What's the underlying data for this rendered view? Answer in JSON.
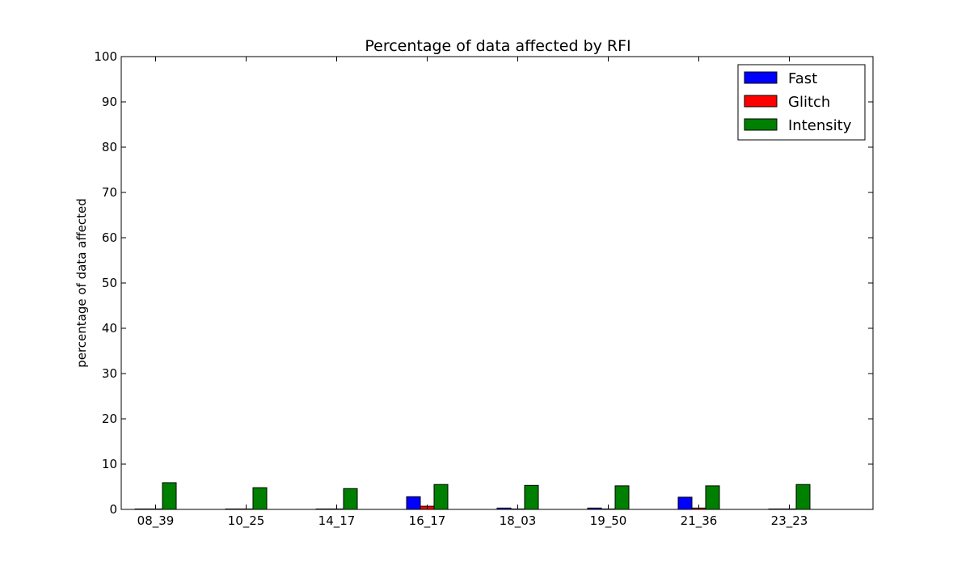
{
  "chart_data": {
    "type": "bar",
    "title": "Percentage of data affected by RFI",
    "xlabel": "",
    "ylabel": "percentage of data affected",
    "ylim": [
      0,
      100
    ],
    "yticks": [
      0,
      10,
      20,
      30,
      40,
      50,
      60,
      70,
      80,
      90,
      100
    ],
    "categories": [
      "08_39",
      "10_25",
      "14_17",
      "16_17",
      "18_03",
      "19_50",
      "21_36",
      "23_23"
    ],
    "series": [
      {
        "name": "Fast",
        "color": "#0000ff",
        "values": [
          0.1,
          0.1,
          0.1,
          2.8,
          0.3,
          0.3,
          2.7,
          0.1
        ]
      },
      {
        "name": "Glitch",
        "color": "#ff0000",
        "values": [
          0.1,
          0.1,
          0.1,
          0.7,
          0.1,
          0.1,
          0.3,
          0.1
        ]
      },
      {
        "name": "Intensity",
        "color": "#008000",
        "values": [
          5.9,
          4.8,
          4.6,
          5.5,
          5.3,
          5.2,
          5.2,
          5.5
        ]
      }
    ],
    "legend": "top-right",
    "grid": false
  }
}
